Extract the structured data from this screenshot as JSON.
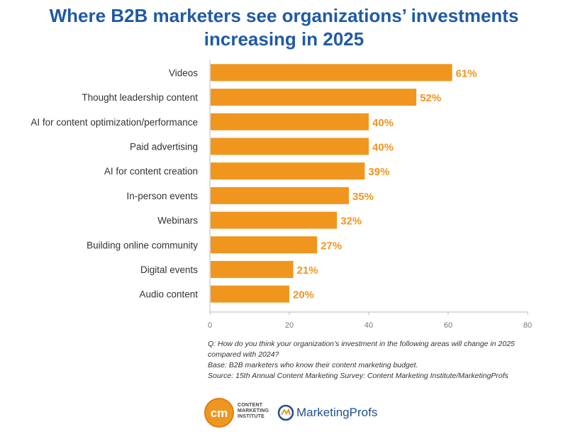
{
  "chart_data": {
    "type": "bar",
    "orientation": "horizontal",
    "title": "Where B2B marketers see organizations’ investments increasing in 2025",
    "categories": [
      "Videos",
      "Thought leadership content",
      "AI for content optimization/performance",
      "Paid advertising",
      "AI for content creation",
      "In-person events",
      "Webinars",
      "Building online community",
      "Digital events",
      "Audio content"
    ],
    "values": [
      61,
      52,
      40,
      40,
      39,
      35,
      32,
      27,
      21,
      20
    ],
    "data_labels": [
      "61%",
      "52%",
      "40%",
      "40%",
      "39%",
      "35%",
      "32%",
      "27%",
      "21%",
      "20%"
    ],
    "xlim": [
      0,
      80
    ],
    "xticks": [
      "0",
      "20",
      "40",
      "60",
      "80"
    ],
    "xlabel": "",
    "ylabel": "",
    "grid": false,
    "bar_color": "#f0961e",
    "label_color": "#f0961e",
    "title_color": "#1f5aa6"
  },
  "notes": {
    "question": "Q: How do you think your organization’s investment in the following areas will change in 2025 compared with 2024?",
    "base": "Base: B2B marketers who know their content marketing budget.",
    "source": "Source: 15th Annual Content Marketing Survey: Content Marketing Institute/MarketingProfs"
  },
  "logos": {
    "cmi_mark": "cm",
    "cmi_line1": "CONTENT",
    "cmi_line2": "MARKETING",
    "cmi_line3": "INSTITUTE",
    "mp_text": "MarketingProfs"
  },
  "title_lines": [
    "Where B2B marketers see organizations’ investments",
    "increasing in 2025"
  ]
}
